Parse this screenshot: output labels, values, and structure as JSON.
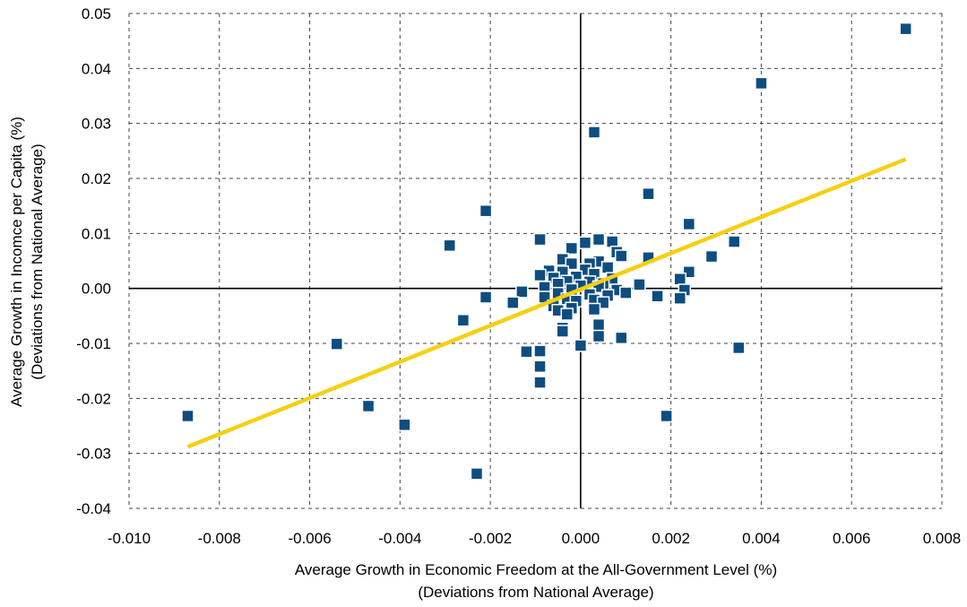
{
  "chart_data": {
    "type": "scatter",
    "xlabel": "Average Growth in Economic Freedom at the All-Government Level (%)",
    "xlabel_sub": "(Deviations from National Average)",
    "ylabel": "Average Growth in Incomce per Capita (%)",
    "ylabel_sub": "(Deviations from National Average)",
    "xlim": [
      -0.01,
      0.008
    ],
    "ylim": [
      -0.04,
      0.05
    ],
    "x_ticks": [
      -0.01,
      -0.008,
      -0.006,
      -0.004,
      -0.002,
      0.0,
      0.002,
      0.004,
      0.006,
      0.008
    ],
    "x_tick_labels": [
      "-0.010",
      "-0.008",
      "-0.006",
      "-0.004",
      "-0.002",
      "0.000",
      "0.002",
      "0.004",
      "0.006",
      "0.008"
    ],
    "y_ticks": [
      -0.04,
      -0.03,
      -0.02,
      -0.01,
      0.0,
      0.01,
      0.02,
      0.03,
      0.04,
      0.05
    ],
    "y_tick_labels": [
      "-0.04",
      "-0.03",
      "-0.02",
      "-0.01",
      "0.00",
      "0.01",
      "0.02",
      "0.03",
      "0.04",
      "0.05"
    ],
    "grid": true,
    "grid_style": "dashed",
    "marker_color": "#0e4d80",
    "trendline_color": "#f4d013",
    "trendline": {
      "x": [
        -0.0087,
        0.0072
      ],
      "y": [
        -0.0288,
        0.0235
      ]
    },
    "points": [
      [
        0.0072,
        0.0472
      ],
      [
        0.004,
        0.0373
      ],
      [
        0.0003,
        0.0284
      ],
      [
        0.0015,
        0.0172
      ],
      [
        -0.0021,
        0.0141
      ],
      [
        0.0024,
        0.0117
      ],
      [
        -0.0029,
        0.0078
      ],
      [
        -0.0009,
        0.0089
      ],
      [
        0.0004,
        0.0089
      ],
      [
        0.0007,
        0.0085
      ],
      [
        0.0034,
        0.0085
      ],
      [
        0.0001,
        0.0083
      ],
      [
        -0.0002,
        0.0073
      ],
      [
        0.0008,
        0.0066
      ],
      [
        0.0009,
        0.0059
      ],
      [
        0.0015,
        0.0056
      ],
      [
        0.0029,
        0.0058
      ],
      [
        -0.0004,
        0.0053
      ],
      [
        0.0004,
        0.0049
      ],
      [
        0.0002,
        0.0045
      ],
      [
        -0.0002,
        0.0045
      ],
      [
        0.0006,
        0.0038
      ],
      [
        -0.0007,
        0.0032
      ],
      [
        -0.0004,
        0.003
      ],
      [
        0.0001,
        0.0034
      ],
      [
        -0.0009,
        0.0024
      ],
      [
        0.0024,
        0.003
      ],
      [
        0.0003,
        0.0026
      ],
      [
        -0.0006,
        0.0019
      ],
      [
        -0.0001,
        0.0021
      ],
      [
        0.0007,
        0.0018
      ],
      [
        0.0022,
        0.0017
      ],
      [
        -0.0003,
        0.0013
      ],
      [
        0.0002,
        0.0012
      ],
      [
        0.0005,
        0.0009
      ],
      [
        0.0013,
        0.0007
      ],
      [
        -0.0005,
        0.0008
      ],
      [
        0.0,
        0.0005
      ],
      [
        -0.0008,
        0.0002
      ],
      [
        0.0004,
        0.0003
      ],
      [
        -0.0002,
        -0.0002
      ],
      [
        0.0008,
        -0.0003
      ],
      [
        0.0023,
        -0.0003
      ],
      [
        -0.0013,
        -0.0006
      ],
      [
        0.001,
        -0.0008
      ],
      [
        -0.0005,
        -0.0009
      ],
      [
        0.0002,
        -0.0011
      ],
      [
        0.0006,
        -0.0013
      ],
      [
        -0.0021,
        -0.0016
      ],
      [
        0.0017,
        -0.0014
      ],
      [
        -0.0008,
        -0.0016
      ],
      [
        -0.0003,
        -0.0019
      ],
      [
        0.0003,
        -0.0021
      ],
      [
        -0.0001,
        -0.0023
      ],
      [
        0.0022,
        -0.0018
      ],
      [
        -0.0015,
        -0.0026
      ],
      [
        0.0005,
        -0.0026
      ],
      [
        -0.0006,
        -0.0032
      ],
      [
        -0.0002,
        -0.0036
      ],
      [
        0.0003,
        -0.0038
      ],
      [
        -0.0005,
        -0.004
      ],
      [
        -0.0003,
        -0.0047
      ],
      [
        -0.0026,
        -0.0058
      ],
      [
        0.0004,
        -0.0066
      ],
      [
        -0.0004,
        -0.0072
      ],
      [
        -0.0004,
        -0.0078
      ],
      [
        0.0004,
        -0.0087
      ],
      [
        0.0009,
        -0.009
      ],
      [
        -0.0054,
        -0.0101
      ],
      [
        0.0,
        -0.0104
      ],
      [
        0.0035,
        -0.0108
      ],
      [
        -0.0012,
        -0.0115
      ],
      [
        -0.0009,
        -0.0114
      ],
      [
        -0.0009,
        -0.0142
      ],
      [
        -0.0009,
        -0.0171
      ],
      [
        -0.0047,
        -0.0214
      ],
      [
        -0.0087,
        -0.0232
      ],
      [
        0.0019,
        -0.0232
      ],
      [
        -0.0039,
        -0.0248
      ],
      [
        -0.0023,
        -0.0337
      ]
    ]
  }
}
